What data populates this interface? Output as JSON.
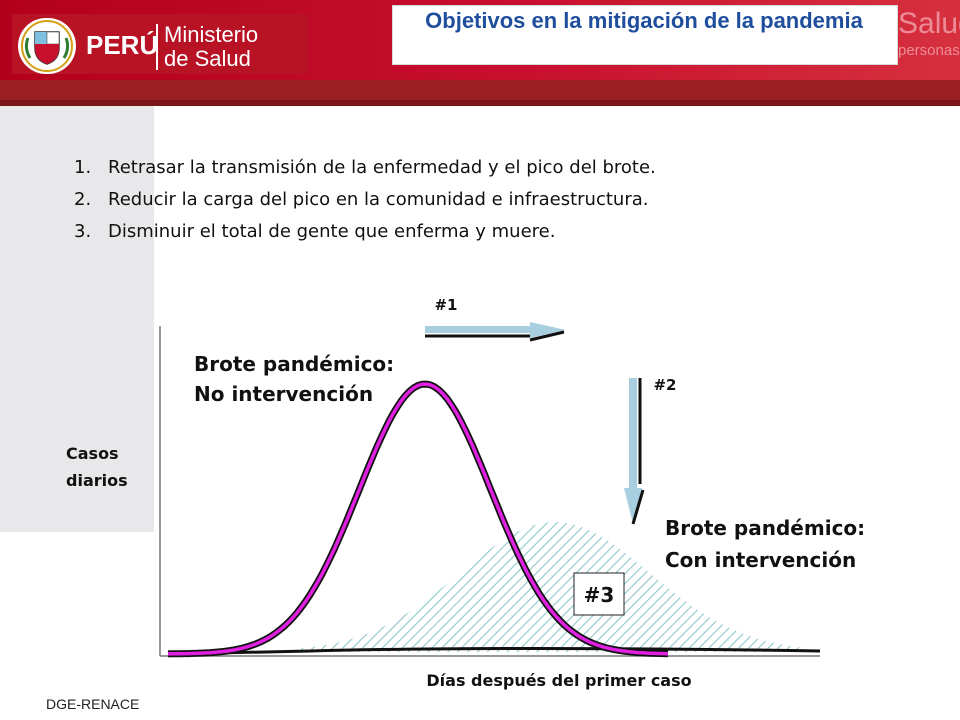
{
  "header": {
    "title": "Objetivos en la mitigación de la pandemia",
    "logo_country": "PERÚ",
    "logo_ministry_line1": "Ministerio",
    "logo_ministry_line2": "de Salud",
    "deco_word1": "Salud",
    "deco_word2": "personas"
  },
  "objectives": [
    {
      "num": "1.",
      "text": "Retrasar la transmisión de la enfermedad y el pico del brote."
    },
    {
      "num": "2.",
      "text": "Reducir la carga del pico en la comunidad e infraestructura."
    },
    {
      "num": "3.",
      "text": "Disminuir el total de gente que enferma y muere."
    }
  ],
  "diagram": {
    "y_label_line1": "Casos",
    "y_label_line2": "diarios",
    "x_label": "Días después del primer caso",
    "curve1_label_line1": "Brote pandémico:",
    "curve1_label_line2": "No intervención",
    "curve2_label_line1": "Brote pandémico:",
    "curve2_label_line2": "Con intervención",
    "arrow1_label": "#1",
    "arrow2_label": "#2",
    "area_label": "#3",
    "colors": {
      "no_intervention_curve": "#e020e0",
      "intervention_fill": "#9fd3d6",
      "arrow": "#a7cfe0",
      "title_blue": "#1f4e9c",
      "header_red": "#c8102e"
    }
  },
  "footer": {
    "source": "DGE-RENACE"
  }
}
